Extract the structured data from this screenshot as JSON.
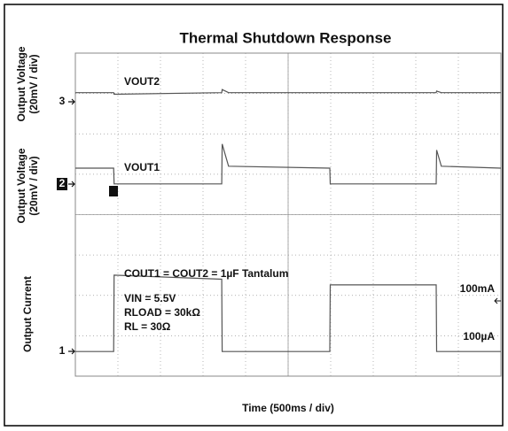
{
  "chart_data": {
    "type": "line",
    "title": "Thermal Shutdown Response",
    "x_label": "Time (500ms / div)",
    "y_labels": [
      [
        "Output Voltage",
        "(20mV / div)"
      ],
      [
        "Output Voltage",
        "(20mV / div)"
      ],
      [
        "Output Current"
      ]
    ],
    "channel_markers": [
      "3",
      "2",
      "1"
    ],
    "xlim": [
      0,
      10
    ],
    "ylim": [
      0,
      8
    ],
    "x": [
      0,
      0.9,
      0.91,
      3.44,
      3.45,
      3.6,
      5.98,
      5.99,
      8.48,
      8.49,
      8.6,
      10
    ],
    "series": [
      {
        "name": "VOUT2",
        "color": "#555555",
        "values": [
          7.02,
          7.02,
          6.98,
          7.02,
          7.1,
          7.02,
          7.02,
          7.02,
          7.02,
          7.06,
          7.02,
          7.02
        ]
      },
      {
        "name": "VOUT1",
        "color": "#555555",
        "values": [
          5.15,
          5.15,
          4.76,
          4.76,
          5.75,
          5.2,
          5.15,
          4.76,
          4.76,
          5.6,
          5.2,
          5.15
        ]
      },
      {
        "name": "Output Current",
        "color": "#555555",
        "values": [
          0.61,
          0.61,
          2.5,
          2.4,
          0.61,
          0.61,
          0.61,
          2.26,
          2.26,
          0.61,
          0.61,
          0.61
        ]
      }
    ],
    "annotations": [
      "COUT1 = COUT2 = 1µF Tantalum",
      "VIN = 5.5V",
      "RLOAD = 30kΩ",
      "RL = 30Ω",
      "100mA",
      "100µA"
    ]
  }
}
